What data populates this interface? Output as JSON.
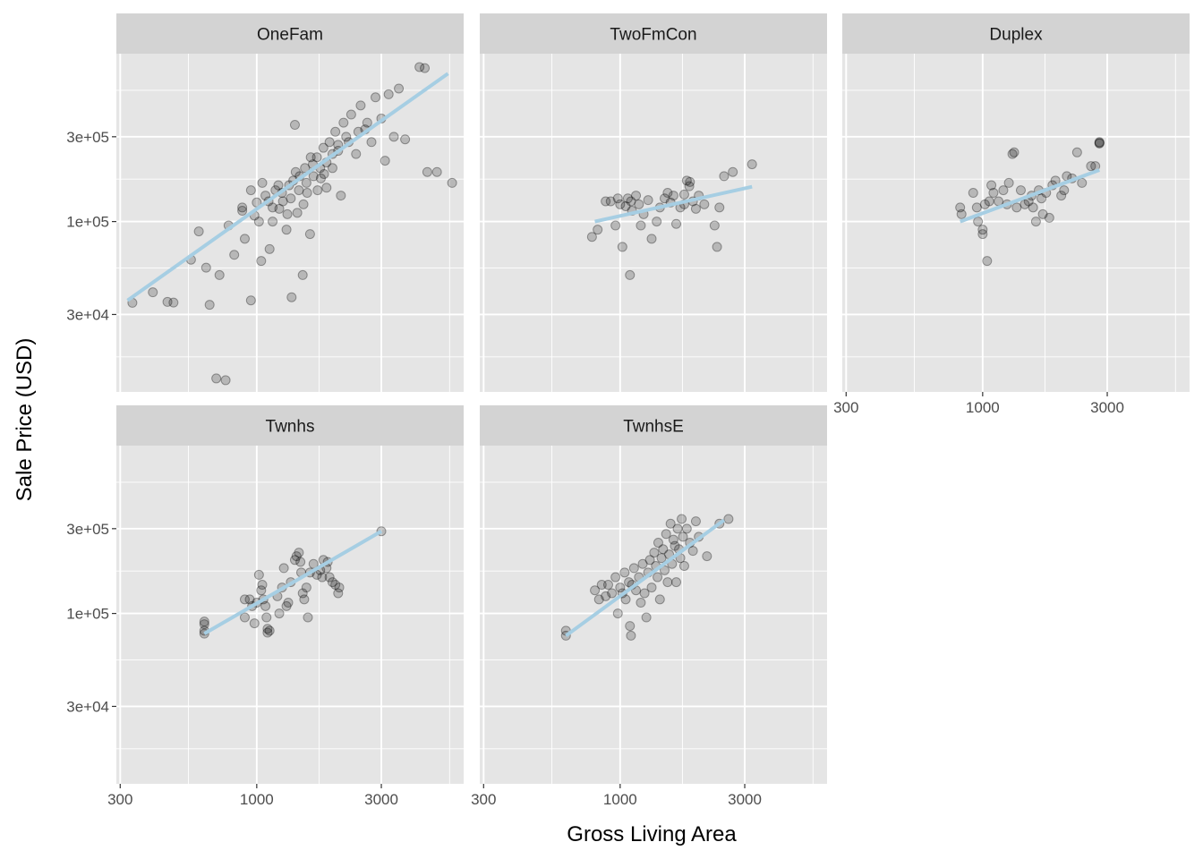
{
  "chart_data": {
    "type": "scatter",
    "facet_type": "wrap",
    "ncol": 3,
    "xlabel": "Gross Living Area",
    "ylabel": "Sale Price (USD)",
    "x_scale": "log10",
    "y_scale": "log10",
    "xlim": [
      290,
      6200
    ],
    "ylim": [
      11000,
      880000
    ],
    "x_ticks": [
      {
        "value": 300,
        "label": "300"
      },
      {
        "value": 1000,
        "label": "1000"
      },
      {
        "value": 3000,
        "label": "3000"
      }
    ],
    "y_ticks": [
      {
        "value": 30000,
        "label": "3e+04"
      },
      {
        "value": 100000,
        "label": "1e+05"
      },
      {
        "value": 300000,
        "label": "3e+05"
      }
    ],
    "grid": true,
    "legend": "none",
    "colors": {
      "panel_bg": "#e5e5e5",
      "strip_bg": "#d3d3d3",
      "grid": "#ffffff",
      "point": "#000000",
      "trend": "#a6cee3"
    },
    "panels": [
      {
        "name": "OneFam",
        "trend": {
          "x": [
            320,
            5400
          ],
          "y": [
            36000,
            680000
          ]
        },
        "points": [
          [
            334,
            34900
          ],
          [
            400,
            40000
          ],
          [
            455,
            35300
          ],
          [
            480,
            35000
          ],
          [
            560,
            61000
          ],
          [
            600,
            88000
          ],
          [
            640,
            55000
          ],
          [
            660,
            34000
          ],
          [
            700,
            13100
          ],
          [
            720,
            50000
          ],
          [
            760,
            12800
          ],
          [
            780,
            95000
          ],
          [
            820,
            65000
          ],
          [
            880,
            115000
          ],
          [
            900,
            80000
          ],
          [
            950,
            36000
          ],
          [
            980,
            108000
          ],
          [
            1000,
            128000
          ],
          [
            1040,
            60000
          ],
          [
            1080,
            140000
          ],
          [
            1120,
            70000
          ],
          [
            1150,
            100000
          ],
          [
            1180,
            150000
          ],
          [
            1220,
            118000
          ],
          [
            1260,
            130000
          ],
          [
            1300,
            90000
          ],
          [
            1330,
            160000
          ],
          [
            1360,
            37500
          ],
          [
            1380,
            170000
          ],
          [
            1400,
            350000
          ],
          [
            1430,
            112000
          ],
          [
            1460,
            180000
          ],
          [
            1500,
            50000
          ],
          [
            1530,
            200000
          ],
          [
            1560,
            145000
          ],
          [
            1600,
            85000
          ],
          [
            1640,
            210000
          ],
          [
            1700,
            230000
          ],
          [
            1760,
            175000
          ],
          [
            1800,
            260000
          ],
          [
            1850,
            155000
          ],
          [
            1900,
            280000
          ],
          [
            1950,
            200000
          ],
          [
            2000,
            320000
          ],
          [
            2050,
            250000
          ],
          [
            2100,
            140000
          ],
          [
            2150,
            360000
          ],
          [
            2200,
            300000
          ],
          [
            2300,
            400000
          ],
          [
            2400,
            240000
          ],
          [
            2500,
            450000
          ],
          [
            2600,
            330000
          ],
          [
            2750,
            280000
          ],
          [
            2850,
            500000
          ],
          [
            3000,
            380000
          ],
          [
            3100,
            220000
          ],
          [
            3200,
            520000
          ],
          [
            3350,
            300000
          ],
          [
            3500,
            560000
          ],
          [
            3700,
            290000
          ],
          [
            4200,
            740000
          ],
          [
            4400,
            730000
          ],
          [
            4500,
            190000
          ],
          [
            4900,
            190000
          ],
          [
            5600,
            165000
          ],
          [
            950,
            150000
          ],
          [
            1050,
            165000
          ],
          [
            1150,
            120000
          ],
          [
            1250,
            145000
          ],
          [
            1350,
            135000
          ],
          [
            1450,
            150000
          ],
          [
            1550,
            165000
          ],
          [
            1650,
            180000
          ],
          [
            1750,
            200000
          ],
          [
            1850,
            215000
          ],
          [
            1950,
            240000
          ],
          [
            2050,
            270000
          ],
          [
            2250,
            280000
          ],
          [
            2450,
            320000
          ],
          [
            2650,
            360000
          ],
          [
            880,
            120000
          ],
          [
            1020,
            100000
          ],
          [
            1110,
            130000
          ],
          [
            1210,
            160000
          ],
          [
            1310,
            110000
          ],
          [
            1410,
            190000
          ],
          [
            1510,
            125000
          ],
          [
            1610,
            230000
          ],
          [
            1710,
            150000
          ],
          [
            1810,
            185000
          ]
        ]
      },
      {
        "name": "TwoFmCon",
        "trend": {
          "x": [
            800,
            3200
          ],
          "y": [
            100000,
            157000
          ]
        },
        "points": [
          [
            780,
            82000
          ],
          [
            820,
            90000
          ],
          [
            880,
            130000
          ],
          [
            920,
            130000
          ],
          [
            960,
            95000
          ],
          [
            980,
            135000
          ],
          [
            1000,
            125000
          ],
          [
            1020,
            72000
          ],
          [
            1050,
            122000
          ],
          [
            1070,
            135000
          ],
          [
            1090,
            50000
          ],
          [
            1110,
            115000
          ],
          [
            1150,
            140000
          ],
          [
            1180,
            125000
          ],
          [
            1200,
            95000
          ],
          [
            1230,
            110000
          ],
          [
            1280,
            132000
          ],
          [
            1320,
            80000
          ],
          [
            1380,
            100000
          ],
          [
            1420,
            120000
          ],
          [
            1480,
            135000
          ],
          [
            1520,
            145000
          ],
          [
            1560,
            128000
          ],
          [
            1640,
            97000
          ],
          [
            1700,
            120000
          ],
          [
            1760,
            142000
          ],
          [
            1800,
            170000
          ],
          [
            1840,
            158000
          ],
          [
            1900,
            130000
          ],
          [
            2000,
            140000
          ],
          [
            2100,
            125000
          ],
          [
            2300,
            95000
          ],
          [
            2350,
            72000
          ],
          [
            2400,
            120000
          ],
          [
            2500,
            180000
          ],
          [
            2700,
            190000
          ],
          [
            3200,
            210000
          ],
          [
            1600,
            140000
          ],
          [
            1760,
            125000
          ],
          [
            1850,
            167000
          ],
          [
            1950,
            118000
          ],
          [
            1100,
            130000
          ]
        ]
      },
      {
        "name": "Duplex",
        "trend": {
          "x": [
            820,
            2800
          ],
          "y": [
            100000,
            195000
          ]
        },
        "points": [
          [
            820,
            120000
          ],
          [
            830,
            110000
          ],
          [
            920,
            145000
          ],
          [
            950,
            120000
          ],
          [
            960,
            100000
          ],
          [
            1000,
            90000
          ],
          [
            1000,
            85000
          ],
          [
            1020,
            125000
          ],
          [
            1040,
            60000
          ],
          [
            1060,
            130000
          ],
          [
            1080,
            160000
          ],
          [
            1100,
            145000
          ],
          [
            1150,
            130000
          ],
          [
            1200,
            150000
          ],
          [
            1240,
            125000
          ],
          [
            1260,
            165000
          ],
          [
            1300,
            240000
          ],
          [
            1320,
            245000
          ],
          [
            1350,
            120000
          ],
          [
            1400,
            150000
          ],
          [
            1450,
            125000
          ],
          [
            1500,
            130000
          ],
          [
            1540,
            140000
          ],
          [
            1560,
            120000
          ],
          [
            1600,
            100000
          ],
          [
            1640,
            150000
          ],
          [
            1680,
            135000
          ],
          [
            1700,
            110000
          ],
          [
            1750,
            145000
          ],
          [
            1800,
            105000
          ],
          [
            1850,
            160000
          ],
          [
            1900,
            170000
          ],
          [
            2000,
            140000
          ],
          [
            2050,
            150000
          ],
          [
            2100,
            180000
          ],
          [
            2200,
            175000
          ],
          [
            2300,
            245000
          ],
          [
            2400,
            165000
          ],
          [
            2600,
            205000
          ],
          [
            2700,
            205000
          ],
          [
            2800,
            275000
          ],
          [
            2800,
            277000
          ],
          [
            2800,
            280000
          ]
        ]
      },
      {
        "name": "Twnhs",
        "trend": {
          "x": [
            630,
            3000
          ],
          "y": [
            77000,
            290000
          ]
        },
        "points": [
          [
            630,
            80000
          ],
          [
            630,
            90000
          ],
          [
            630,
            87000
          ],
          [
            630,
            77000
          ],
          [
            900,
            95000
          ],
          [
            900,
            120000
          ],
          [
            940,
            120000
          ],
          [
            960,
            110000
          ],
          [
            980,
            88000
          ],
          [
            1000,
            115000
          ],
          [
            1020,
            165000
          ],
          [
            1040,
            135000
          ],
          [
            1050,
            145000
          ],
          [
            1060,
            120000
          ],
          [
            1080,
            110000
          ],
          [
            1090,
            95000
          ],
          [
            1100,
            82000
          ],
          [
            1100,
            78000
          ],
          [
            1120,
            80000
          ],
          [
            1200,
            125000
          ],
          [
            1220,
            100000
          ],
          [
            1250,
            140000
          ],
          [
            1270,
            180000
          ],
          [
            1300,
            110000
          ],
          [
            1320,
            115000
          ],
          [
            1350,
            150000
          ],
          [
            1400,
            200000
          ],
          [
            1420,
            210000
          ],
          [
            1450,
            220000
          ],
          [
            1470,
            195000
          ],
          [
            1480,
            170000
          ],
          [
            1500,
            130000
          ],
          [
            1520,
            120000
          ],
          [
            1550,
            140000
          ],
          [
            1570,
            95000
          ],
          [
            1600,
            170000
          ],
          [
            1650,
            190000
          ],
          [
            1700,
            165000
          ],
          [
            1750,
            175000
          ],
          [
            1780,
            160000
          ],
          [
            1800,
            200000
          ],
          [
            1850,
            180000
          ],
          [
            1870,
            195000
          ],
          [
            1900,
            160000
          ],
          [
            1950,
            150000
          ],
          [
            2000,
            145000
          ],
          [
            2050,
            130000
          ],
          [
            2070,
            140000
          ],
          [
            3000,
            290000
          ]
        ]
      },
      {
        "name": "TwnhsE",
        "trend": {
          "x": [
            620,
            2500
          ],
          "y": [
            75000,
            335000
          ]
        },
        "points": [
          [
            620,
            75000
          ],
          [
            620,
            80000
          ],
          [
            800,
            135000
          ],
          [
            830,
            120000
          ],
          [
            850,
            145000
          ],
          [
            880,
            125000
          ],
          [
            900,
            145000
          ],
          [
            930,
            130000
          ],
          [
            960,
            160000
          ],
          [
            980,
            100000
          ],
          [
            1000,
            140000
          ],
          [
            1020,
            130000
          ],
          [
            1040,
            170000
          ],
          [
            1050,
            120000
          ],
          [
            1080,
            150000
          ],
          [
            1090,
            85000
          ],
          [
            1100,
            75000
          ],
          [
            1110,
            145000
          ],
          [
            1130,
            180000
          ],
          [
            1150,
            135000
          ],
          [
            1180,
            160000
          ],
          [
            1200,
            115000
          ],
          [
            1220,
            190000
          ],
          [
            1240,
            130000
          ],
          [
            1260,
            95000
          ],
          [
            1280,
            170000
          ],
          [
            1300,
            200000
          ],
          [
            1320,
            140000
          ],
          [
            1350,
            220000
          ],
          [
            1370,
            185000
          ],
          [
            1390,
            160000
          ],
          [
            1400,
            250000
          ],
          [
            1420,
            120000
          ],
          [
            1440,
            205000
          ],
          [
            1460,
            230000
          ],
          [
            1480,
            175000
          ],
          [
            1500,
            280000
          ],
          [
            1520,
            150000
          ],
          [
            1540,
            215000
          ],
          [
            1560,
            320000
          ],
          [
            1580,
            190000
          ],
          [
            1600,
            260000
          ],
          [
            1620,
            240000
          ],
          [
            1640,
            150000
          ],
          [
            1660,
            300000
          ],
          [
            1680,
            230000
          ],
          [
            1700,
            205000
          ],
          [
            1720,
            340000
          ],
          [
            1740,
            270000
          ],
          [
            1760,
            185000
          ],
          [
            1800,
            300000
          ],
          [
            1850,
            250000
          ],
          [
            1900,
            225000
          ],
          [
            1950,
            330000
          ],
          [
            2000,
            270000
          ],
          [
            2150,
            210000
          ],
          [
            2400,
            320000
          ],
          [
            2600,
            340000
          ]
        ]
      }
    ]
  }
}
